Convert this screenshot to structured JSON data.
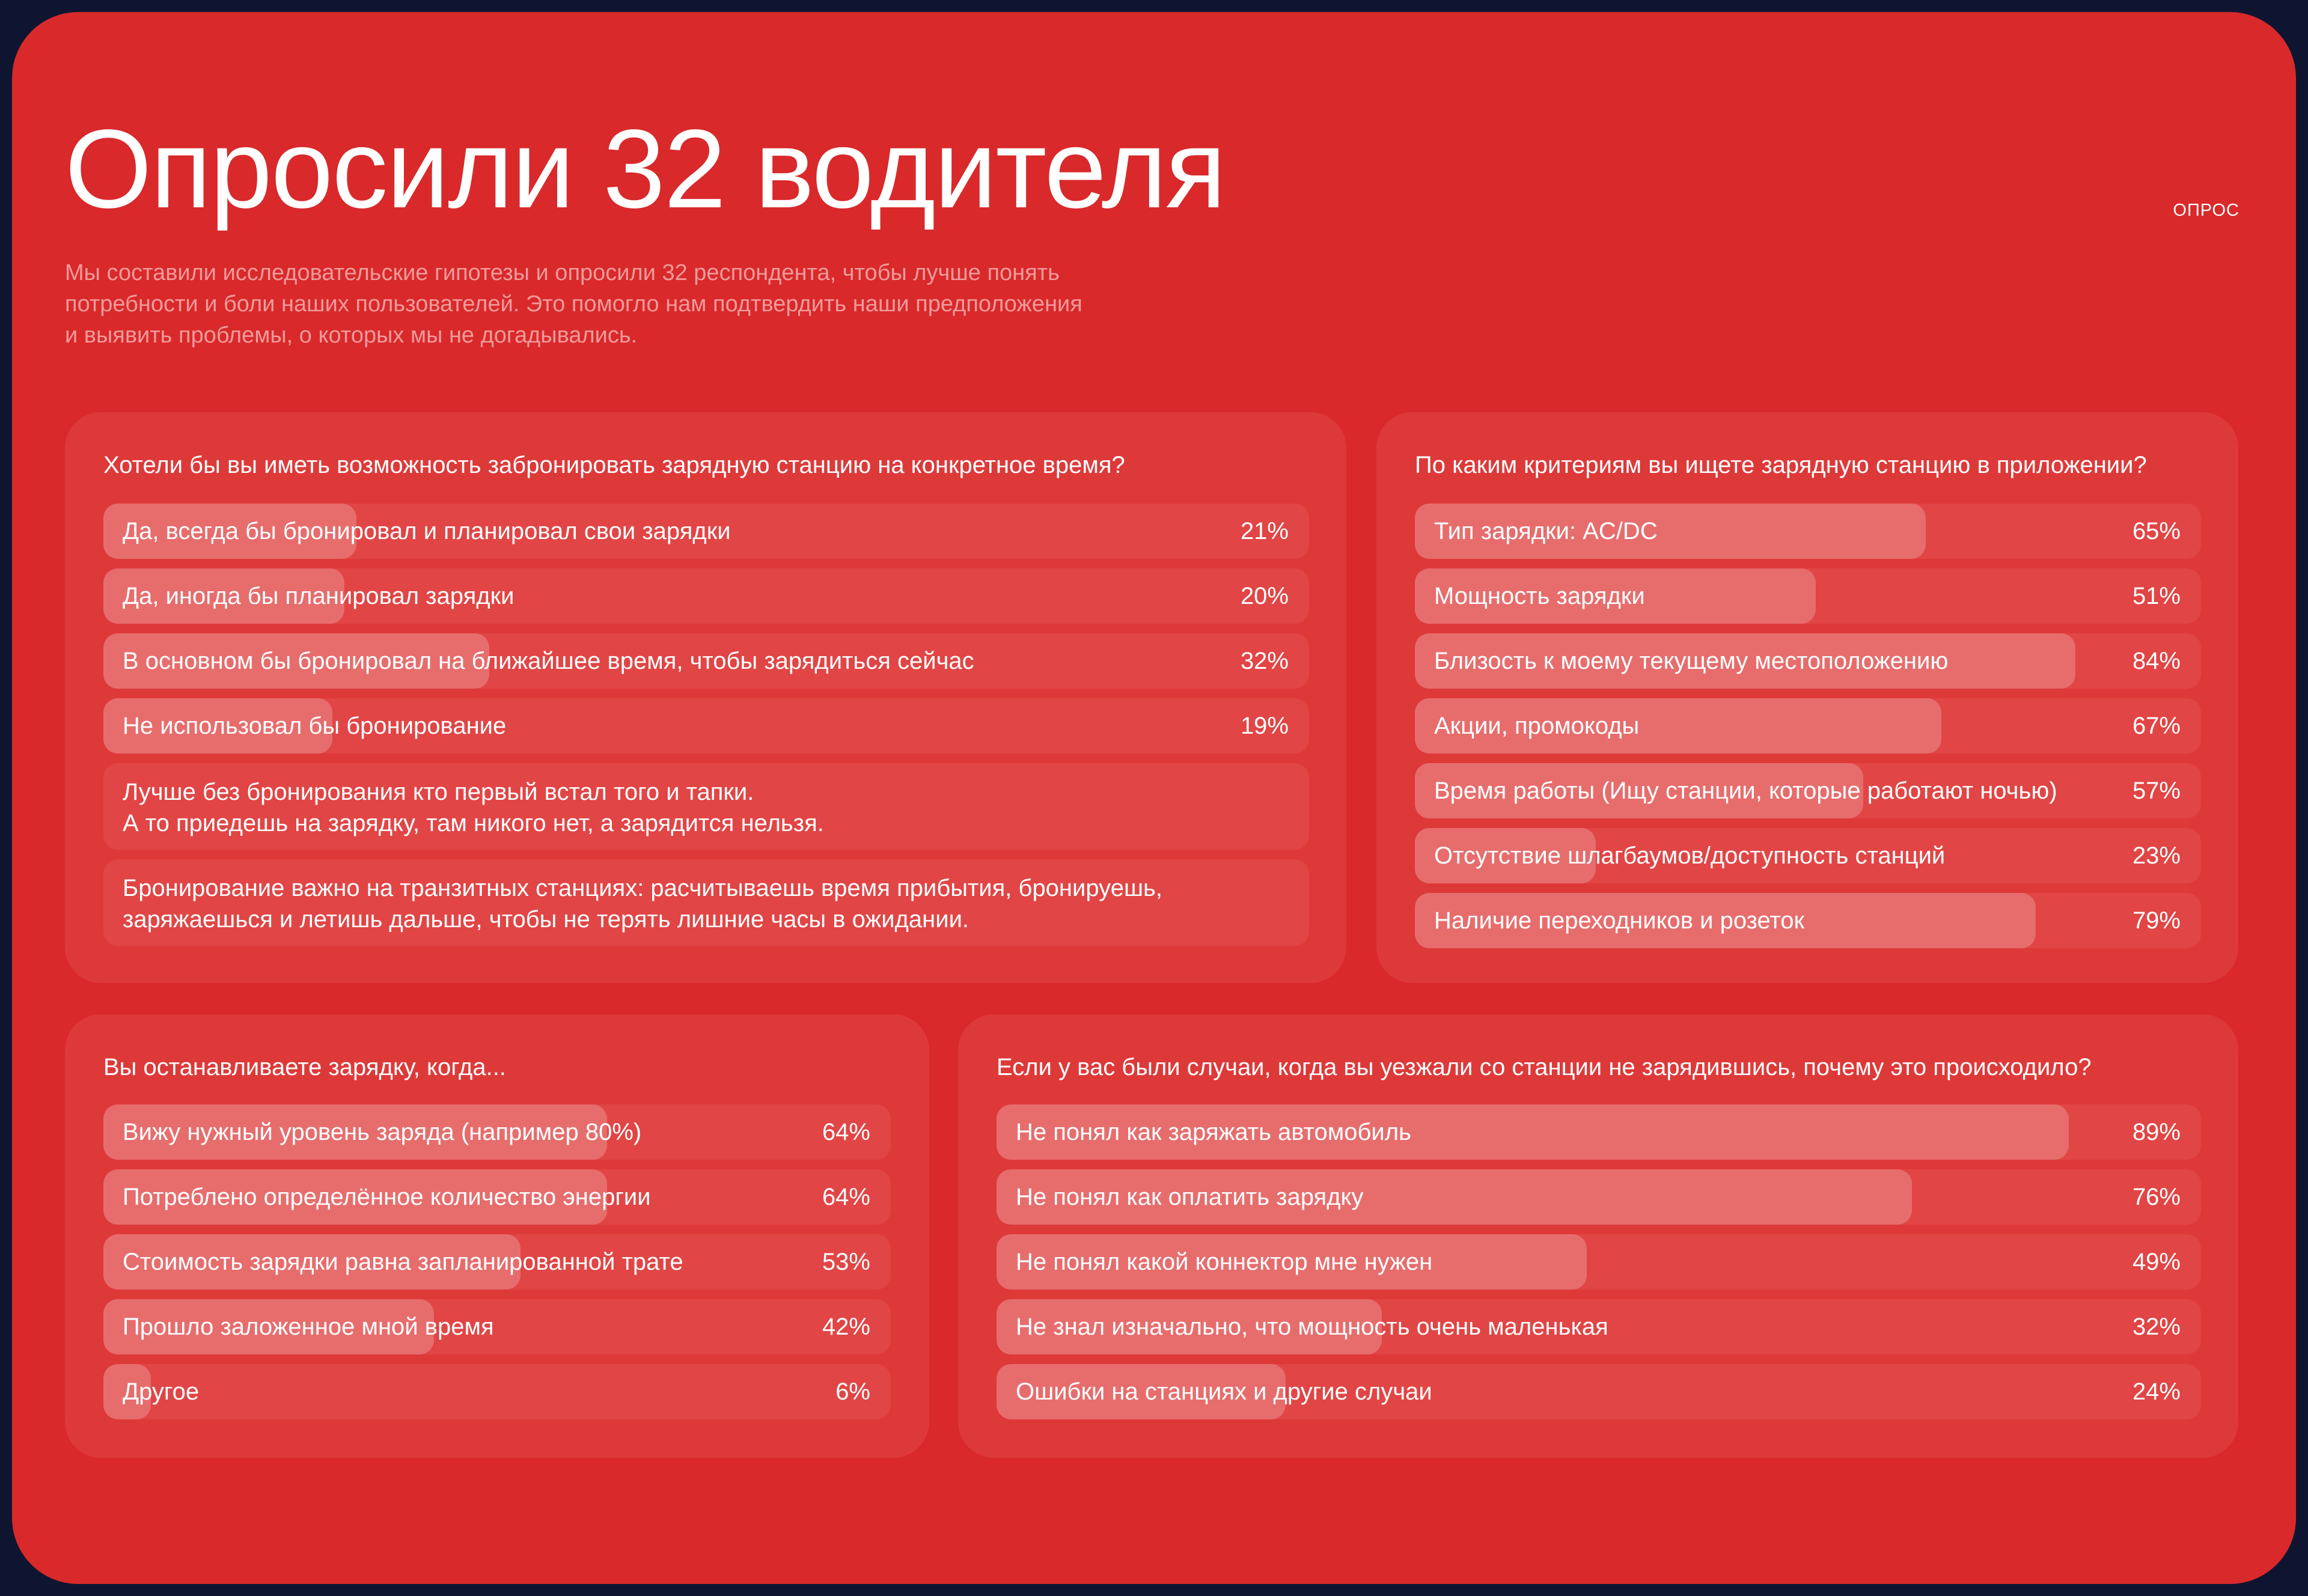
{
  "header": {
    "title": "Опросили 32 водителя",
    "tag": "ОПРОС",
    "subtitle_lines": [
      "Мы составили исследовательские гипотезы и опросили 32 респондента, чтобы лучше понять",
      "потребности и боли наших пользователей. Это помогло нам подтвердить наши предположения",
      "и выявить проблемы, о которых мы не догадывались."
    ]
  },
  "colors": {
    "background": "#0f1530",
    "panel": "#d9292b",
    "card": "#de3939",
    "bar_track": "#e14545",
    "bar_fill": "#e76d6d"
  },
  "cards": [
    {
      "id": "booking",
      "question": "Хотели бы вы иметь возможность забронировать зарядную станцию на конкретное время?",
      "options": [
        {
          "label": "Да, всегда бы бронировал и планировал свои зарядки",
          "value": 21,
          "pct": "21%"
        },
        {
          "label": "Да, иногда бы планировал зарядки",
          "value": 20,
          "pct": "20%"
        },
        {
          "label": "В основном бы бронировал на ближайшее время, чтобы зарядиться сейчас",
          "value": 32,
          "pct": "32%"
        },
        {
          "label": "Не использовал бы бронирование",
          "value": 19,
          "pct": "19%"
        }
      ],
      "quotes": [
        [
          "Лучше без бронирования кто первый встал того и тапки.",
          "А то приедешь на зарядку, там никого нет, а зарядится нельзя."
        ],
        [
          "Бронирование важно на транзитных станциях: расчитываешь время прибытия, бронируешь,",
          "заряжаешься и летишь дальше, чтобы не терять лишние часы в ожидании."
        ]
      ]
    },
    {
      "id": "criteria",
      "question": "По каким критериям вы ищете зарядную станцию в приложении?",
      "options": [
        {
          "label": "Тип зарядки: AC/DC",
          "value": 65,
          "pct": "65%"
        },
        {
          "label": "Мощность зарядки",
          "value": 51,
          "pct": "51%"
        },
        {
          "label": "Близость к моему текущему местоположению",
          "value": 84,
          "pct": "84%"
        },
        {
          "label": "Акции, промокоды",
          "value": 67,
          "pct": "67%"
        },
        {
          "label": "Время работы (Ищу станции, которые работают ночью)",
          "value": 57,
          "pct": "57%"
        },
        {
          "label": "Отсутствие шлагбаумов/доступность станций",
          "value": 23,
          "pct": "23%"
        },
        {
          "label": "Наличие переходников и розеток",
          "value": 79,
          "pct": "79%"
        }
      ]
    },
    {
      "id": "stop",
      "question": "Вы останавливаете зарядку, когда...",
      "options": [
        {
          "label": "Вижу нужный уровень заряда (например 80%)",
          "value": 64,
          "pct": "64%"
        },
        {
          "label": "Потреблено определённое количество энергии",
          "value": 64,
          "pct": "64%"
        },
        {
          "label": "Стоимость зарядки равна запланированной трате",
          "value": 53,
          "pct": "53%"
        },
        {
          "label": "Прошло заложенное мной время",
          "value": 42,
          "pct": "42%"
        },
        {
          "label": "Другое",
          "value": 6,
          "pct": "6%"
        }
      ]
    },
    {
      "id": "leave",
      "question": "Если у вас были случаи, когда вы уезжали со станции не зарядившись, почему это происходило?",
      "options": [
        {
          "label": "Не понял как заряжать автомобиль",
          "value": 89,
          "pct": "89%"
        },
        {
          "label": "Не понял как оплатить зарядку",
          "value": 76,
          "pct": "76%"
        },
        {
          "label": "Не понял какой коннектор мне нужен",
          "value": 49,
          "pct": "49%"
        },
        {
          "label": "Не знал изначально, что мощность очень маленькая",
          "value": 32,
          "pct": "32%"
        },
        {
          "label": "Ошибки на станциях и другие случаи",
          "value": 24,
          "pct": "24%"
        }
      ]
    }
  ]
}
